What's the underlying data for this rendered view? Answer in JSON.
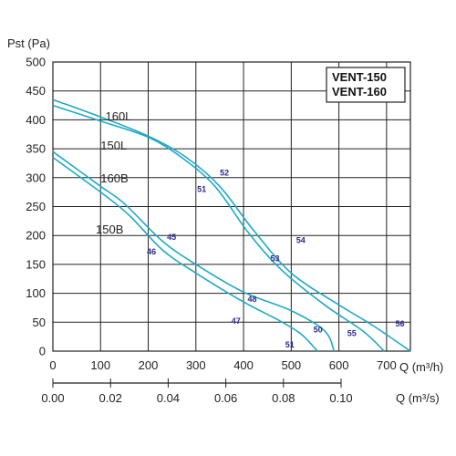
{
  "chart_data": {
    "type": "line",
    "ylabel": "Pst (Pa)",
    "xlabel": "Q (m³/h)",
    "xlabel2": "Q (m³/s)",
    "xlim": [
      0,
      750
    ],
    "ylim": [
      0,
      500
    ],
    "x_ticks": [
      "0",
      "100",
      "200",
      "300",
      "400",
      "500",
      "600",
      "700"
    ],
    "x2_ticks": [
      "0.00",
      "0.02",
      "0.04",
      "0.06",
      "0.08",
      "0.10"
    ],
    "y_ticks": [
      "0",
      "50",
      "100",
      "150",
      "200",
      "250",
      "300",
      "350",
      "400",
      "450",
      "500"
    ],
    "grid": true,
    "legend_box": [
      "VENT-150",
      "VENT-160"
    ],
    "line_color": "#1fa9c4",
    "series": [
      {
        "name": "160L",
        "points": [
          [
            0,
            435
          ],
          [
            100,
            405
          ],
          [
            200,
            372
          ],
          [
            280,
            335
          ],
          [
            350,
            285
          ],
          [
            420,
            210
          ],
          [
            500,
            135
          ],
          [
            600,
            80
          ],
          [
            670,
            45
          ],
          [
            750,
            0
          ]
        ]
      },
      {
        "name": "150L",
        "points": [
          [
            0,
            425
          ],
          [
            100,
            398
          ],
          [
            200,
            370
          ],
          [
            270,
            335
          ],
          [
            340,
            285
          ],
          [
            410,
            205
          ],
          [
            480,
            140
          ],
          [
            570,
            80
          ],
          [
            650,
            35
          ],
          [
            695,
            0
          ]
        ]
      },
      {
        "name": "160B",
        "points": [
          [
            0,
            345
          ],
          [
            100,
            285
          ],
          [
            150,
            255
          ],
          [
            230,
            190
          ],
          [
            300,
            150
          ],
          [
            400,
            102
          ],
          [
            500,
            70
          ],
          [
            570,
            35
          ],
          [
            590,
            0
          ]
        ]
      },
      {
        "name": "150B",
        "points": [
          [
            0,
            335
          ],
          [
            100,
            275
          ],
          [
            160,
            235
          ],
          [
            230,
            175
          ],
          [
            300,
            135
          ],
          [
            400,
            85
          ],
          [
            470,
            55
          ],
          [
            520,
            30
          ],
          [
            555,
            0
          ]
        ]
      }
    ],
    "curve_labels": [
      {
        "text": "160L",
        "x": 110,
        "y": 405
      },
      {
        "text": "150L",
        "x": 100,
        "y": 355
      },
      {
        "text": "160B",
        "x": 100,
        "y": 298
      },
      {
        "text": "150B",
        "x": 90,
        "y": 210
      }
    ],
    "point_labels": [
      {
        "text": "52",
        "x": 360,
        "y": 308
      },
      {
        "text": "51",
        "x": 312,
        "y": 280
      },
      {
        "text": "54",
        "x": 520,
        "y": 192
      },
      {
        "text": "53",
        "x": 466,
        "y": 160
      },
      {
        "text": "45",
        "x": 249,
        "y": 197
      },
      {
        "text": "46",
        "x": 207,
        "y": 172
      },
      {
        "text": "48",
        "x": 418,
        "y": 90
      },
      {
        "text": "47",
        "x": 384,
        "y": 52
      },
      {
        "text": "50",
        "x": 556,
        "y": 37
      },
      {
        "text": "51",
        "x": 497,
        "y": 11
      },
      {
        "text": "55",
        "x": 627,
        "y": 31
      },
      {
        "text": "56",
        "x": 728,
        "y": 47
      }
    ]
  }
}
